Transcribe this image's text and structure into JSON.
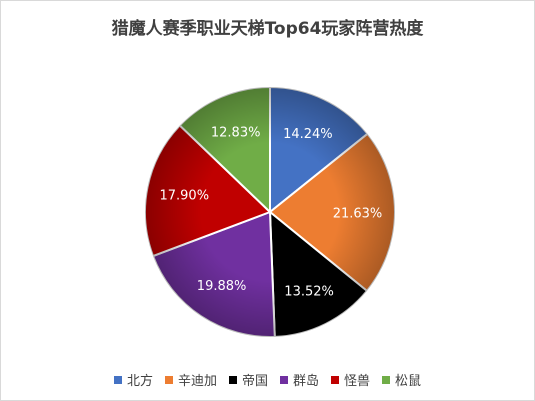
{
  "chart_data": {
    "type": "pie",
    "title": "猎魔人赛季职业天梯Top64玩家阵营热度",
    "categories": [
      "北方",
      "辛迪加",
      "帝国",
      "群岛",
      "怪兽",
      "松鼠"
    ],
    "values": [
      14.24,
      21.63,
      13.52,
      19.88,
      17.9,
      12.83
    ],
    "labels": [
      "14.24%",
      "21.63%",
      "13.52%",
      "19.88%",
      "17.90%",
      "12.83%"
    ],
    "colors": [
      "#4472C4",
      "#ED7D31",
      "#000000",
      "#7030A0",
      "#C00000",
      "#70AD47"
    ],
    "label_colors": [
      "#ffffff",
      "#ffffff",
      "#ffffff",
      "#ffffff",
      "#ffffff",
      "#ffffff"
    ],
    "legend_position": "bottom",
    "start_angle": "12 o'clock",
    "direction": "clockwise"
  }
}
